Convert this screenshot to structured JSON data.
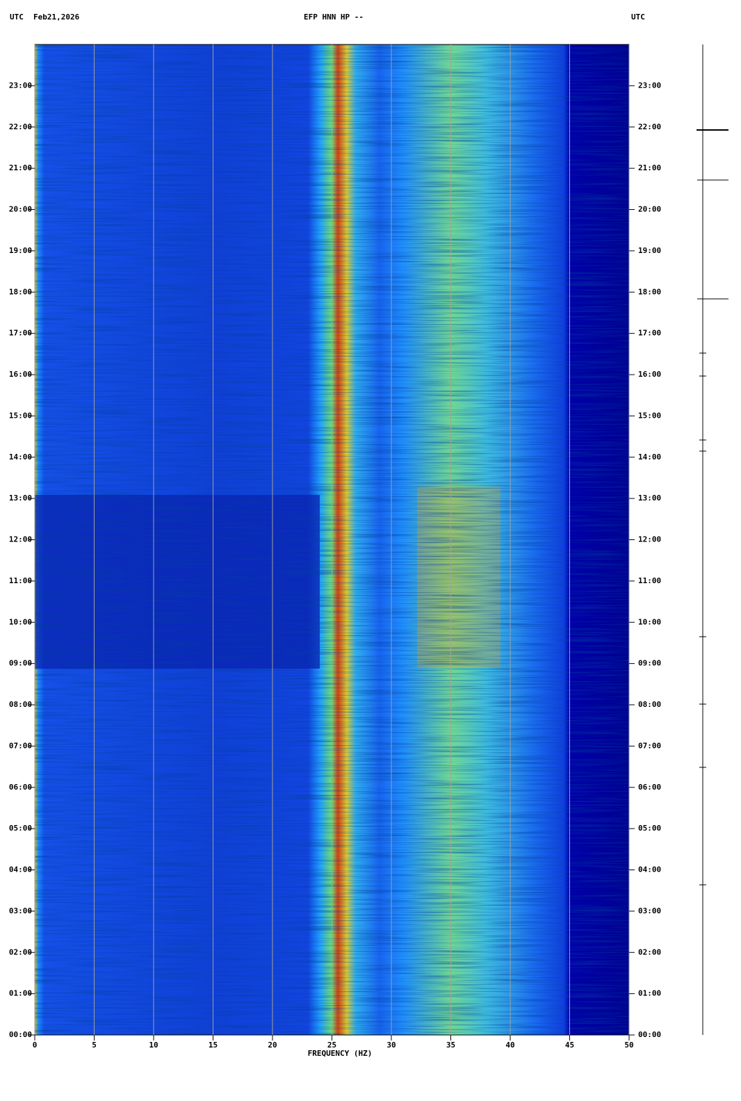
{
  "chart_data": {
    "type": "spectrogram",
    "title": "EFP HNN HP --",
    "timezone_left": "UTC",
    "date": "Feb21,2026",
    "timezone_right": "UTC",
    "xlabel": "FREQUENCY (HZ)",
    "xlim": [
      0,
      50
    ],
    "xticks": [
      0,
      5,
      10,
      15,
      20,
      25,
      30,
      35,
      40,
      45,
      50
    ],
    "ylim": [
      0,
      24
    ],
    "yticks": [
      {
        "value": 0,
        "label": "00:00"
      },
      {
        "value": 1,
        "label": "01:00"
      },
      {
        "value": 2,
        "label": "02:00"
      },
      {
        "value": 3,
        "label": "03:00"
      },
      {
        "value": 4,
        "label": "04:00"
      },
      {
        "value": 5,
        "label": "05:00"
      },
      {
        "value": 6,
        "label": "06:00"
      },
      {
        "value": 7,
        "label": "07:00"
      },
      {
        "value": 8,
        "label": "08:00"
      },
      {
        "value": 9,
        "label": "09:00"
      },
      {
        "value": 10,
        "label": "10:00"
      },
      {
        "value": 11,
        "label": "11:00"
      },
      {
        "value": 12,
        "label": "12:00"
      },
      {
        "value": 13,
        "label": "13:00"
      },
      {
        "value": 14,
        "label": "14:00"
      },
      {
        "value": 15,
        "label": "15:00"
      },
      {
        "value": 16,
        "label": "16:00"
      },
      {
        "value": 17,
        "label": "17:00"
      },
      {
        "value": 18,
        "label": "18:00"
      },
      {
        "value": 19,
        "label": "19:00"
      },
      {
        "value": 20,
        "label": "20:00"
      },
      {
        "value": 21,
        "label": "21:00"
      },
      {
        "value": 22,
        "label": "22:00"
      },
      {
        "value": 23,
        "label": "23:00"
      }
    ],
    "grid": true
  }
}
